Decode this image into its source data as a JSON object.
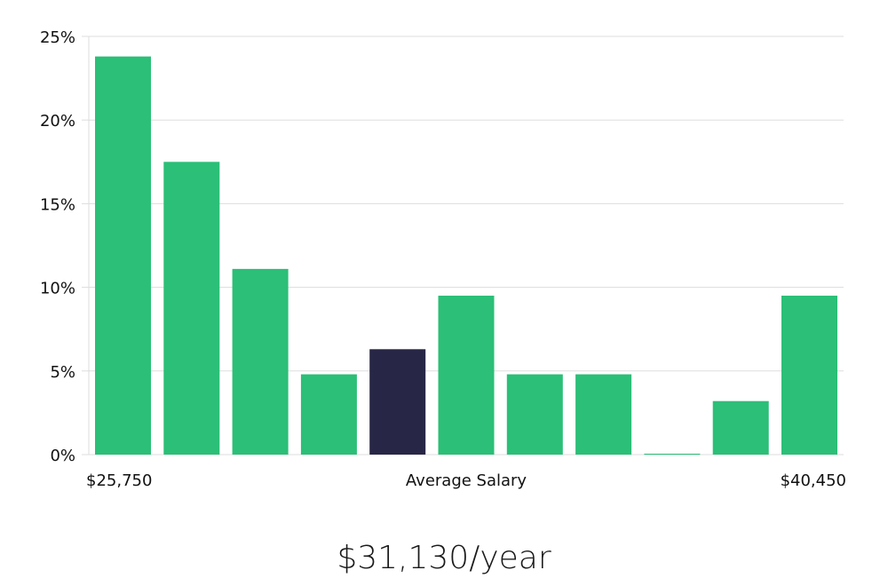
{
  "chart_data": {
    "type": "bar",
    "title": "",
    "xlabel": "Average Salary",
    "ylabel": "",
    "ylim": [
      0,
      25
    ],
    "yticks": [
      0,
      5,
      10,
      15,
      20,
      25
    ],
    "ytick_labels": [
      "0%",
      "5%",
      "10%",
      "15%",
      "20%",
      "25%"
    ],
    "x_range_labels": {
      "min": "$25,750",
      "max": "$40,450"
    },
    "grid": true,
    "categories": [
      "1",
      "2",
      "3",
      "4",
      "5",
      "6",
      "7",
      "8",
      "9",
      "10",
      "11"
    ],
    "values": [
      23.8,
      17.5,
      11.1,
      4.8,
      6.3,
      9.5,
      4.8,
      4.8,
      0,
      3.2,
      9.5
    ],
    "highlight_index": 4,
    "colors": {
      "bar": "#2bbf77",
      "highlight": "#282646",
      "grid": "#dddddd"
    }
  },
  "summary": {
    "salary": "$31,130/year"
  }
}
